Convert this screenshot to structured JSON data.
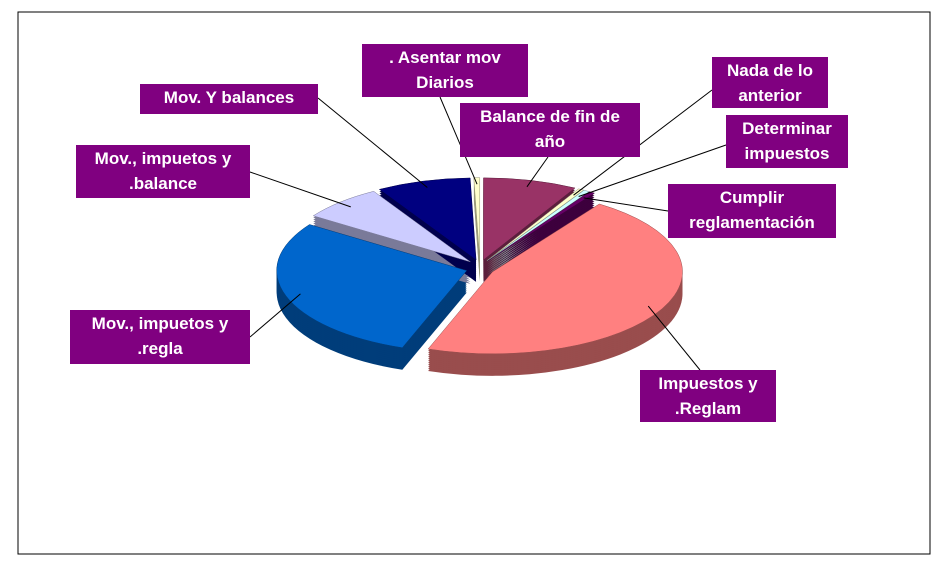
{
  "chart_data": {
    "type": "pie3d",
    "categories": [
      "Balance de fin de año",
      "Nada de lo anterior",
      "Determinar impuestos",
      "Cumplir reglamentación",
      "Impuestos y .Reglam",
      "Mov., impuetos y .regla",
      "Mov., impuetos y .balance",
      "Mov. Y balances",
      ". Asentar mov Diarios"
    ],
    "values": [
      8,
      0.5,
      0.5,
      0.5,
      46,
      29,
      7,
      8,
      0.5
    ],
    "colors": [
      "#993366",
      "#ffffcc",
      "#ccffff",
      "#660066",
      "#ff8080",
      "#0066cc",
      "#ccccff",
      "#000080",
      "#ffffcc"
    ]
  }
}
